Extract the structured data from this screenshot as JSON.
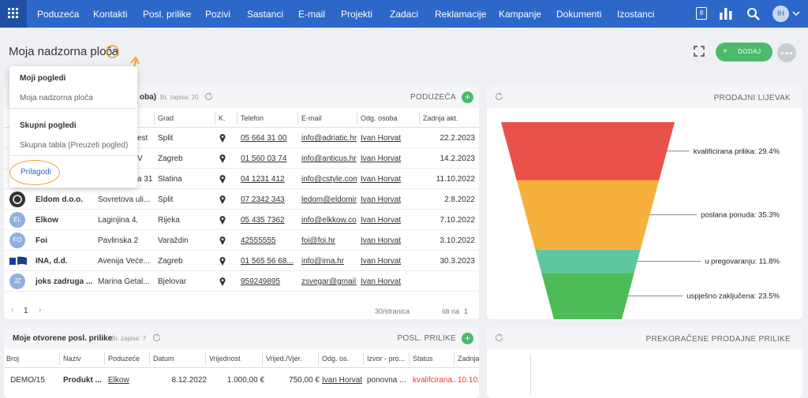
{
  "nav": {
    "items": [
      "Poduzeća",
      "Kontakti",
      "Posl. prilike",
      "Pozivi",
      "Sastanci",
      "E-mail",
      "Projekti",
      "Zadaci",
      "Reklamacije",
      "Kampanje",
      "Dokumenti",
      "Izostanci"
    ],
    "calendar_day": "8",
    "avatar": "IH"
  },
  "header": {
    "title": "Moja nadzorna ploča",
    "add_button": "DODAJ"
  },
  "view_menu": {
    "sections": [
      {
        "title": "Moji pogledi",
        "items": [
          "Moja nadzorna ploča"
        ]
      },
      {
        "title": "Skupni pogledi",
        "items": [
          "Skupna tabla (Preuzeti pogled)"
        ]
      }
    ],
    "customize": "Prilagodi"
  },
  "companies": {
    "title": "oba)",
    "record_count": "Br. zapisa: 20",
    "link": "PODUZEĆA",
    "columns": [
      "Grad",
      "K.",
      "Telefon",
      "E-mail",
      "Odg. osoba",
      "Zadnja akt."
    ],
    "rows": [
      {
        "address": "est",
        "city": "Split",
        "phone": "05 664 31 00",
        "email": "info@adriatic.hr",
        "owner": "Ivan Horvat",
        "date": "22.2.2023"
      },
      {
        "address": "V",
        "city": "Zagreb",
        "phone": "01 560 03 74",
        "email": "info@anticus.hr",
        "owner": "Ivan Horvat",
        "date": "14.2.2023"
      },
      {
        "address": "a 31",
        "city": "Slatina",
        "phone": "04 1231 412",
        "email": "info@cstyle.com",
        "owner": "Ivan Horvat",
        "date": "11.10.2022"
      },
      {
        "name": "Eldom d.o.o.",
        "address": "Sovretova uli...",
        "city": "Split",
        "phone": "07 2342 343",
        "email": "ledom@eldomin",
        "owner": "Ivan Horvat",
        "date": "2.8.2022"
      },
      {
        "avatar": "EL",
        "name": "Elkow",
        "address": "Laginjina 4,",
        "city": "Rijeka",
        "phone": "05 435 7362",
        "email": "info@elkkow.co",
        "owner": "Ivan Horvat",
        "date": "7.10.2022"
      },
      {
        "avatar": "FO",
        "name": "Foi",
        "address": "Pavlinska 2",
        "city": "Varaždin",
        "phone": "42555555",
        "email": "foi@foi.hr",
        "owner": "Ivan Horvat",
        "date": "3.10.2022"
      },
      {
        "name": "INA, d.d.",
        "address": "Avenija Veće...",
        "city": "Zagreb",
        "phone": "01 565 56 68...",
        "email": "info@ima.hr",
        "owner": "Ivan Horvat",
        "date": "30.3.2023"
      },
      {
        "avatar": "JZ",
        "name": "joks zadruga ...",
        "address": "Marina Getal...",
        "city": "Bjelovar",
        "phone": "959249895",
        "email": "zsvegar@gmail.",
        "owner": "Ivan Horvat"
      }
    ],
    "pagination": {
      "page": "1",
      "per_page": "30/stranica",
      "goto": "Idi na",
      "goto_page": "1"
    }
  },
  "chart_data": {
    "type": "funnel",
    "title": "PRODAJNI LIJEVAK",
    "values": [
      29.4,
      35.3,
      11.8,
      23.5
    ],
    "value_labels": [
      "kvalificirana prilika: 29.4%",
      "poslana ponuda: 35.3%",
      "u pregovaranju: 11.8%",
      "uspješno zaključena: 23.5%"
    ],
    "colors": [
      "#e9514b",
      "#f5b03d",
      "#5ec7a0",
      "#4dbb57"
    ]
  },
  "opportunities": {
    "title": "Moje otvorene posl. prilike",
    "record_count": "Br. zapisa: 7",
    "link": "POSL. PRILIKE",
    "columns": [
      "Broj",
      "Naziv",
      "Poduzeće",
      "Datum",
      "Vrijednost",
      "Vrijed./Vjer.",
      "Odg. os.",
      "Izvor - pro...",
      "Status",
      "Zadnja"
    ],
    "rows": [
      [
        "DEMO/15",
        "Produkt ...",
        "Elkow",
        "8.12.2022",
        "1.000,00 €",
        "750,00 €",
        "Ivan Horvat",
        "ponovna ...",
        "kvalifcirana...",
        "10.10.2..."
      ]
    ]
  },
  "overdue": {
    "title": "PREKORAČENE PRODAJNE PRILIKE"
  }
}
